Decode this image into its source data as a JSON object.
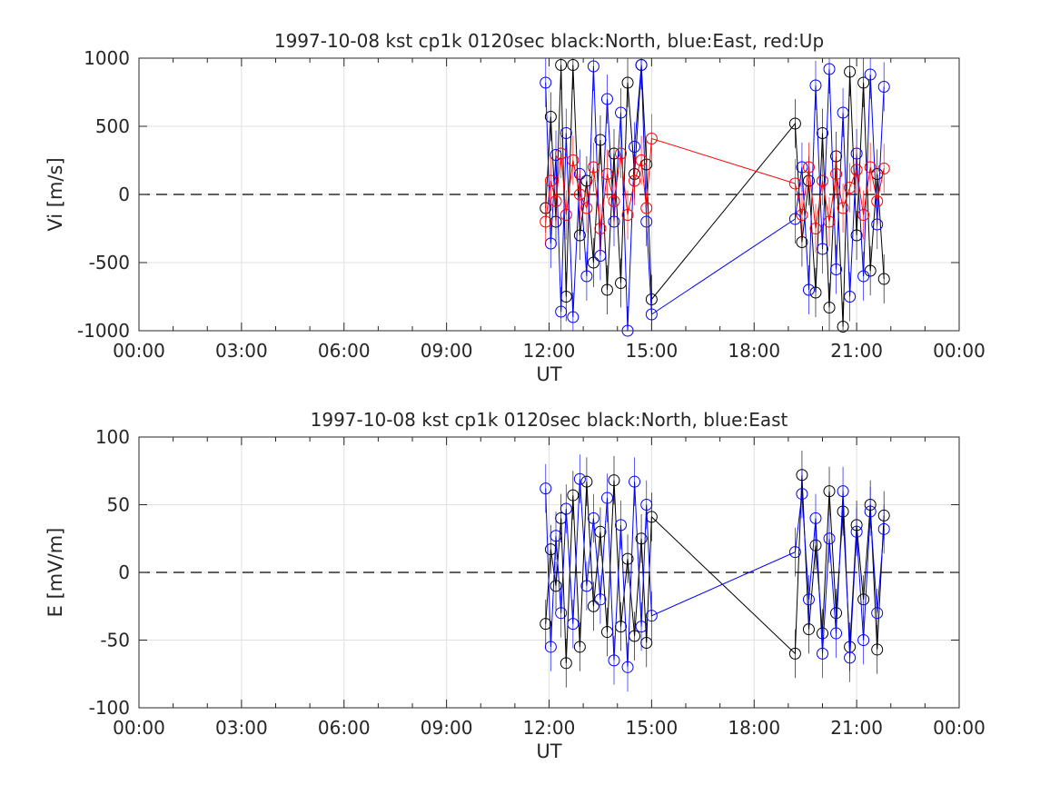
{
  "chart_data": [
    {
      "type": "scatter",
      "title": "1997-10-08 kst cp1k 0120sec black:North, blue:East, red:Up",
      "xlabel": "UT",
      "ylabel": "Vi [m/s]",
      "ylim": [
        -1000,
        1000
      ],
      "xlim": [
        0,
        24
      ],
      "x_ticks": [
        "00:00",
        "03:00",
        "06:00",
        "09:00",
        "12:00",
        "15:00",
        "18:00",
        "21:00",
        "00:00"
      ],
      "y_ticks": [
        "-1000",
        "-500",
        "0",
        "500",
        "1000"
      ],
      "grid": true,
      "zero_line": true,
      "series": [
        {
          "name": "North",
          "color": "#000000",
          "x": [
            11.9,
            12.05,
            12.2,
            12.35,
            12.5,
            12.7,
            12.9,
            13.1,
            13.3,
            13.5,
            13.7,
            13.9,
            14.1,
            14.3,
            14.5,
            14.7,
            14.85,
            15.0,
            19.2,
            19.4,
            19.6,
            19.8,
            20.0,
            20.2,
            20.4,
            20.6,
            20.8,
            21.0,
            21.2,
            21.4,
            21.6,
            21.8
          ],
          "y": [
            -100,
            570,
            -200,
            950,
            -750,
            950,
            -300,
            100,
            -500,
            400,
            -700,
            300,
            -650,
            820,
            150,
            950,
            220,
            -770,
            520,
            -350,
            100,
            -720,
            450,
            -830,
            280,
            -970,
            900,
            -300,
            820,
            -560,
            150,
            -620
          ]
        },
        {
          "name": "East",
          "color": "#0000ff",
          "x": [
            11.9,
            12.05,
            12.2,
            12.35,
            12.5,
            12.7,
            12.9,
            13.1,
            13.3,
            13.5,
            13.7,
            13.9,
            14.1,
            14.3,
            14.5,
            14.7,
            14.85,
            15.0,
            19.2,
            19.4,
            19.6,
            19.8,
            20.0,
            20.2,
            20.4,
            20.6,
            20.8,
            21.0,
            21.2,
            21.4,
            21.6,
            21.8
          ],
          "y": [
            820,
            -360,
            290,
            -860,
            450,
            -900,
            150,
            -600,
            940,
            -450,
            700,
            -200,
            600,
            -1000,
            350,
            950,
            -200,
            -880,
            -180,
            200,
            -700,
            800,
            -400,
            920,
            -550,
            600,
            -750,
            300,
            -600,
            880,
            -220,
            790
          ]
        },
        {
          "name": "Up",
          "color": "#ff0000",
          "x": [
            11.9,
            12.05,
            12.2,
            12.35,
            12.5,
            12.7,
            12.9,
            13.1,
            13.3,
            13.5,
            13.7,
            13.9,
            14.1,
            14.3,
            14.5,
            14.7,
            14.85,
            15.0,
            19.2,
            19.4,
            19.6,
            19.8,
            20.0,
            20.2,
            20.4,
            20.6,
            20.8,
            21.0,
            21.2,
            21.4,
            21.6,
            21.8
          ],
          "y": [
            -200,
            100,
            -50,
            300,
            -150,
            250,
            0,
            -100,
            200,
            -250,
            150,
            -50,
            300,
            -150,
            100,
            250,
            -100,
            410,
            80,
            -150,
            200,
            -250,
            100,
            -200,
            150,
            -100,
            50,
            180,
            -150,
            200,
            -50,
            190
          ]
        }
      ]
    },
    {
      "type": "scatter",
      "title": "1997-10-08 kst cp1k 0120sec black:North, blue:East",
      "xlabel": "UT",
      "ylabel": "E [mV/m]",
      "ylim": [
        -100,
        100
      ],
      "xlim": [
        0,
        24
      ],
      "x_ticks": [
        "00:00",
        "03:00",
        "06:00",
        "09:00",
        "12:00",
        "15:00",
        "18:00",
        "21:00",
        "00:00"
      ],
      "y_ticks": [
        "-100",
        "-50",
        "0",
        "50",
        "100"
      ],
      "grid": true,
      "zero_line": true,
      "series": [
        {
          "name": "North",
          "color": "#000000",
          "x": [
            11.9,
            12.05,
            12.2,
            12.35,
            12.5,
            12.7,
            12.9,
            13.1,
            13.3,
            13.5,
            13.7,
            13.9,
            14.1,
            14.3,
            14.5,
            14.7,
            14.85,
            15.0,
            19.2,
            19.4,
            19.6,
            19.8,
            20.0,
            20.2,
            20.4,
            20.6,
            20.8,
            21.0,
            21.2,
            21.4,
            21.6,
            21.8
          ],
          "y": [
            -38,
            17,
            -10,
            40,
            -67,
            57,
            -55,
            67,
            -25,
            30,
            -44,
            68,
            -40,
            10,
            -47,
            25,
            -52,
            41,
            -60,
            72,
            -42,
            20,
            -45,
            60,
            -30,
            45,
            -55,
            35,
            -20,
            50,
            -57,
            42
          ]
        },
        {
          "name": "East",
          "color": "#0000ff",
          "x": [
            11.9,
            12.05,
            12.2,
            12.35,
            12.5,
            12.7,
            12.9,
            13.1,
            13.3,
            13.5,
            13.7,
            13.9,
            14.1,
            14.3,
            14.5,
            14.7,
            14.85,
            15.0,
            19.2,
            19.4,
            19.6,
            19.8,
            20.0,
            20.2,
            20.4,
            20.6,
            20.8,
            21.0,
            21.2,
            21.4,
            21.6,
            21.8
          ],
          "y": [
            62,
            -55,
            27,
            -30,
            47,
            -38,
            69,
            -10,
            40,
            -20,
            55,
            -65,
            35,
            -70,
            67,
            -40,
            50,
            -32,
            15,
            58,
            -20,
            40,
            -60,
            25,
            -45,
            60,
            -63,
            30,
            -50,
            45,
            -30,
            32
          ]
        }
      ]
    }
  ]
}
